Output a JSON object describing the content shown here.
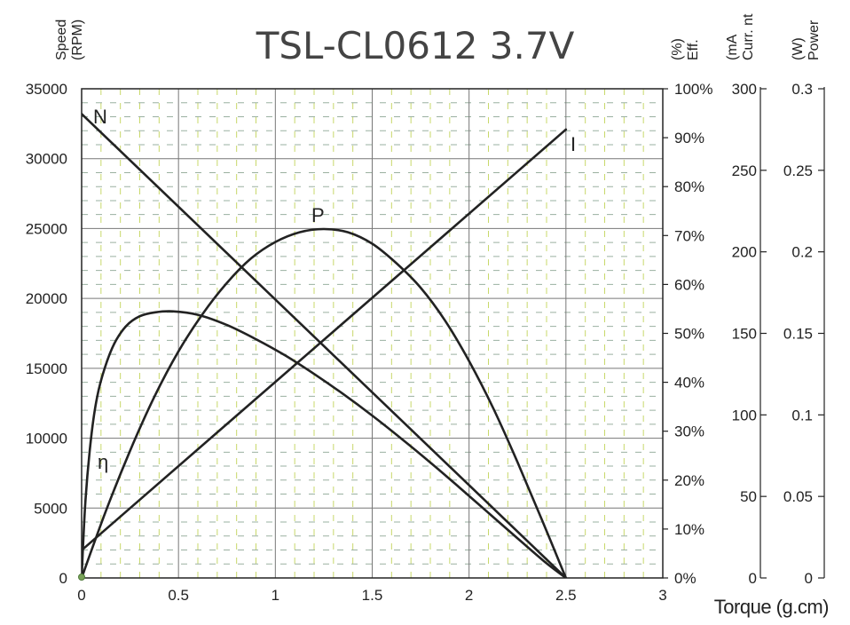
{
  "chart_data": {
    "type": "line",
    "title": "TSL-CL0612 3.7V",
    "xlabel": "Torque (g.cm)",
    "xlim": [
      0,
      3
    ],
    "x_ticks": [
      "0",
      "0.5",
      "1",
      "1.5",
      "2",
      "2.5",
      "3"
    ],
    "axes": {
      "speed": {
        "label_line1": "Speed",
        "label_line2": "(RPM)",
        "range": [
          0,
          35000
        ],
        "ticks": [
          "0",
          "5000",
          "10000",
          "15000",
          "20000",
          "25000",
          "30000",
          "35000"
        ]
      },
      "efficiency": {
        "label_line1": "(%)",
        "label_line2": "Eff.",
        "range": [
          0,
          100
        ],
        "ticks": [
          "0%",
          "10%",
          "20%",
          "30%",
          "40%",
          "50%",
          "60%",
          "70%",
          "80%",
          "90%",
          "100%"
        ]
      },
      "current": {
        "label_line1": "(mA",
        "label_line2": "Curr. nt",
        "range": [
          0,
          300
        ],
        "ticks": [
          "0",
          "50",
          "100",
          "150",
          "200",
          "250",
          "300"
        ]
      },
      "power": {
        "label_line1": "(W)",
        "label_line2": "Power",
        "range": [
          0,
          0.3
        ],
        "ticks": [
          "0",
          "0.05",
          "0.1",
          "0.15",
          "0.2",
          "0.25",
          "0.3"
        ]
      }
    },
    "series": [
      {
        "name": "N",
        "axis": "speed",
        "x": [
          0,
          2.5
        ],
        "y": [
          33200,
          0
        ]
      },
      {
        "name": "I",
        "axis": "current",
        "x": [
          0,
          2.5
        ],
        "y": [
          17,
          275
        ]
      },
      {
        "name": "P",
        "axis": "power",
        "x": [
          0,
          0.125,
          0.25,
          0.375,
          0.5,
          0.625,
          0.75,
          0.875,
          1.0,
          1.125,
          1.25,
          1.375,
          1.5,
          1.625,
          1.75,
          1.875,
          2.0,
          2.125,
          2.25,
          2.375,
          2.5
        ],
        "y": [
          0,
          0.041,
          0.078,
          0.111,
          0.139,
          0.162,
          0.181,
          0.196,
          0.206,
          0.212,
          0.214,
          0.212,
          0.205,
          0.193,
          0.178,
          0.158,
          0.133,
          0.104,
          0.071,
          0.036,
          0
        ]
      },
      {
        "name": "η",
        "axis": "efficiency",
        "x": [
          0,
          0.02,
          0.05,
          0.08,
          0.12,
          0.17,
          0.23,
          0.3,
          0.38,
          0.47,
          0.6,
          0.75,
          0.9,
          1.05,
          1.2,
          1.35,
          1.5,
          1.65,
          1.8,
          1.95,
          2.1,
          2.25,
          2.4,
          2.5
        ],
        "y": [
          0,
          16,
          29,
          37,
          43,
          48,
          51.5,
          53.5,
          54.3,
          54.5,
          53.8,
          51.7,
          48.8,
          45.5,
          41.7,
          37.6,
          33.2,
          28.5,
          23.6,
          18.5,
          13.3,
          8.1,
          3.0,
          0
        ]
      }
    ],
    "grid": true
  }
}
